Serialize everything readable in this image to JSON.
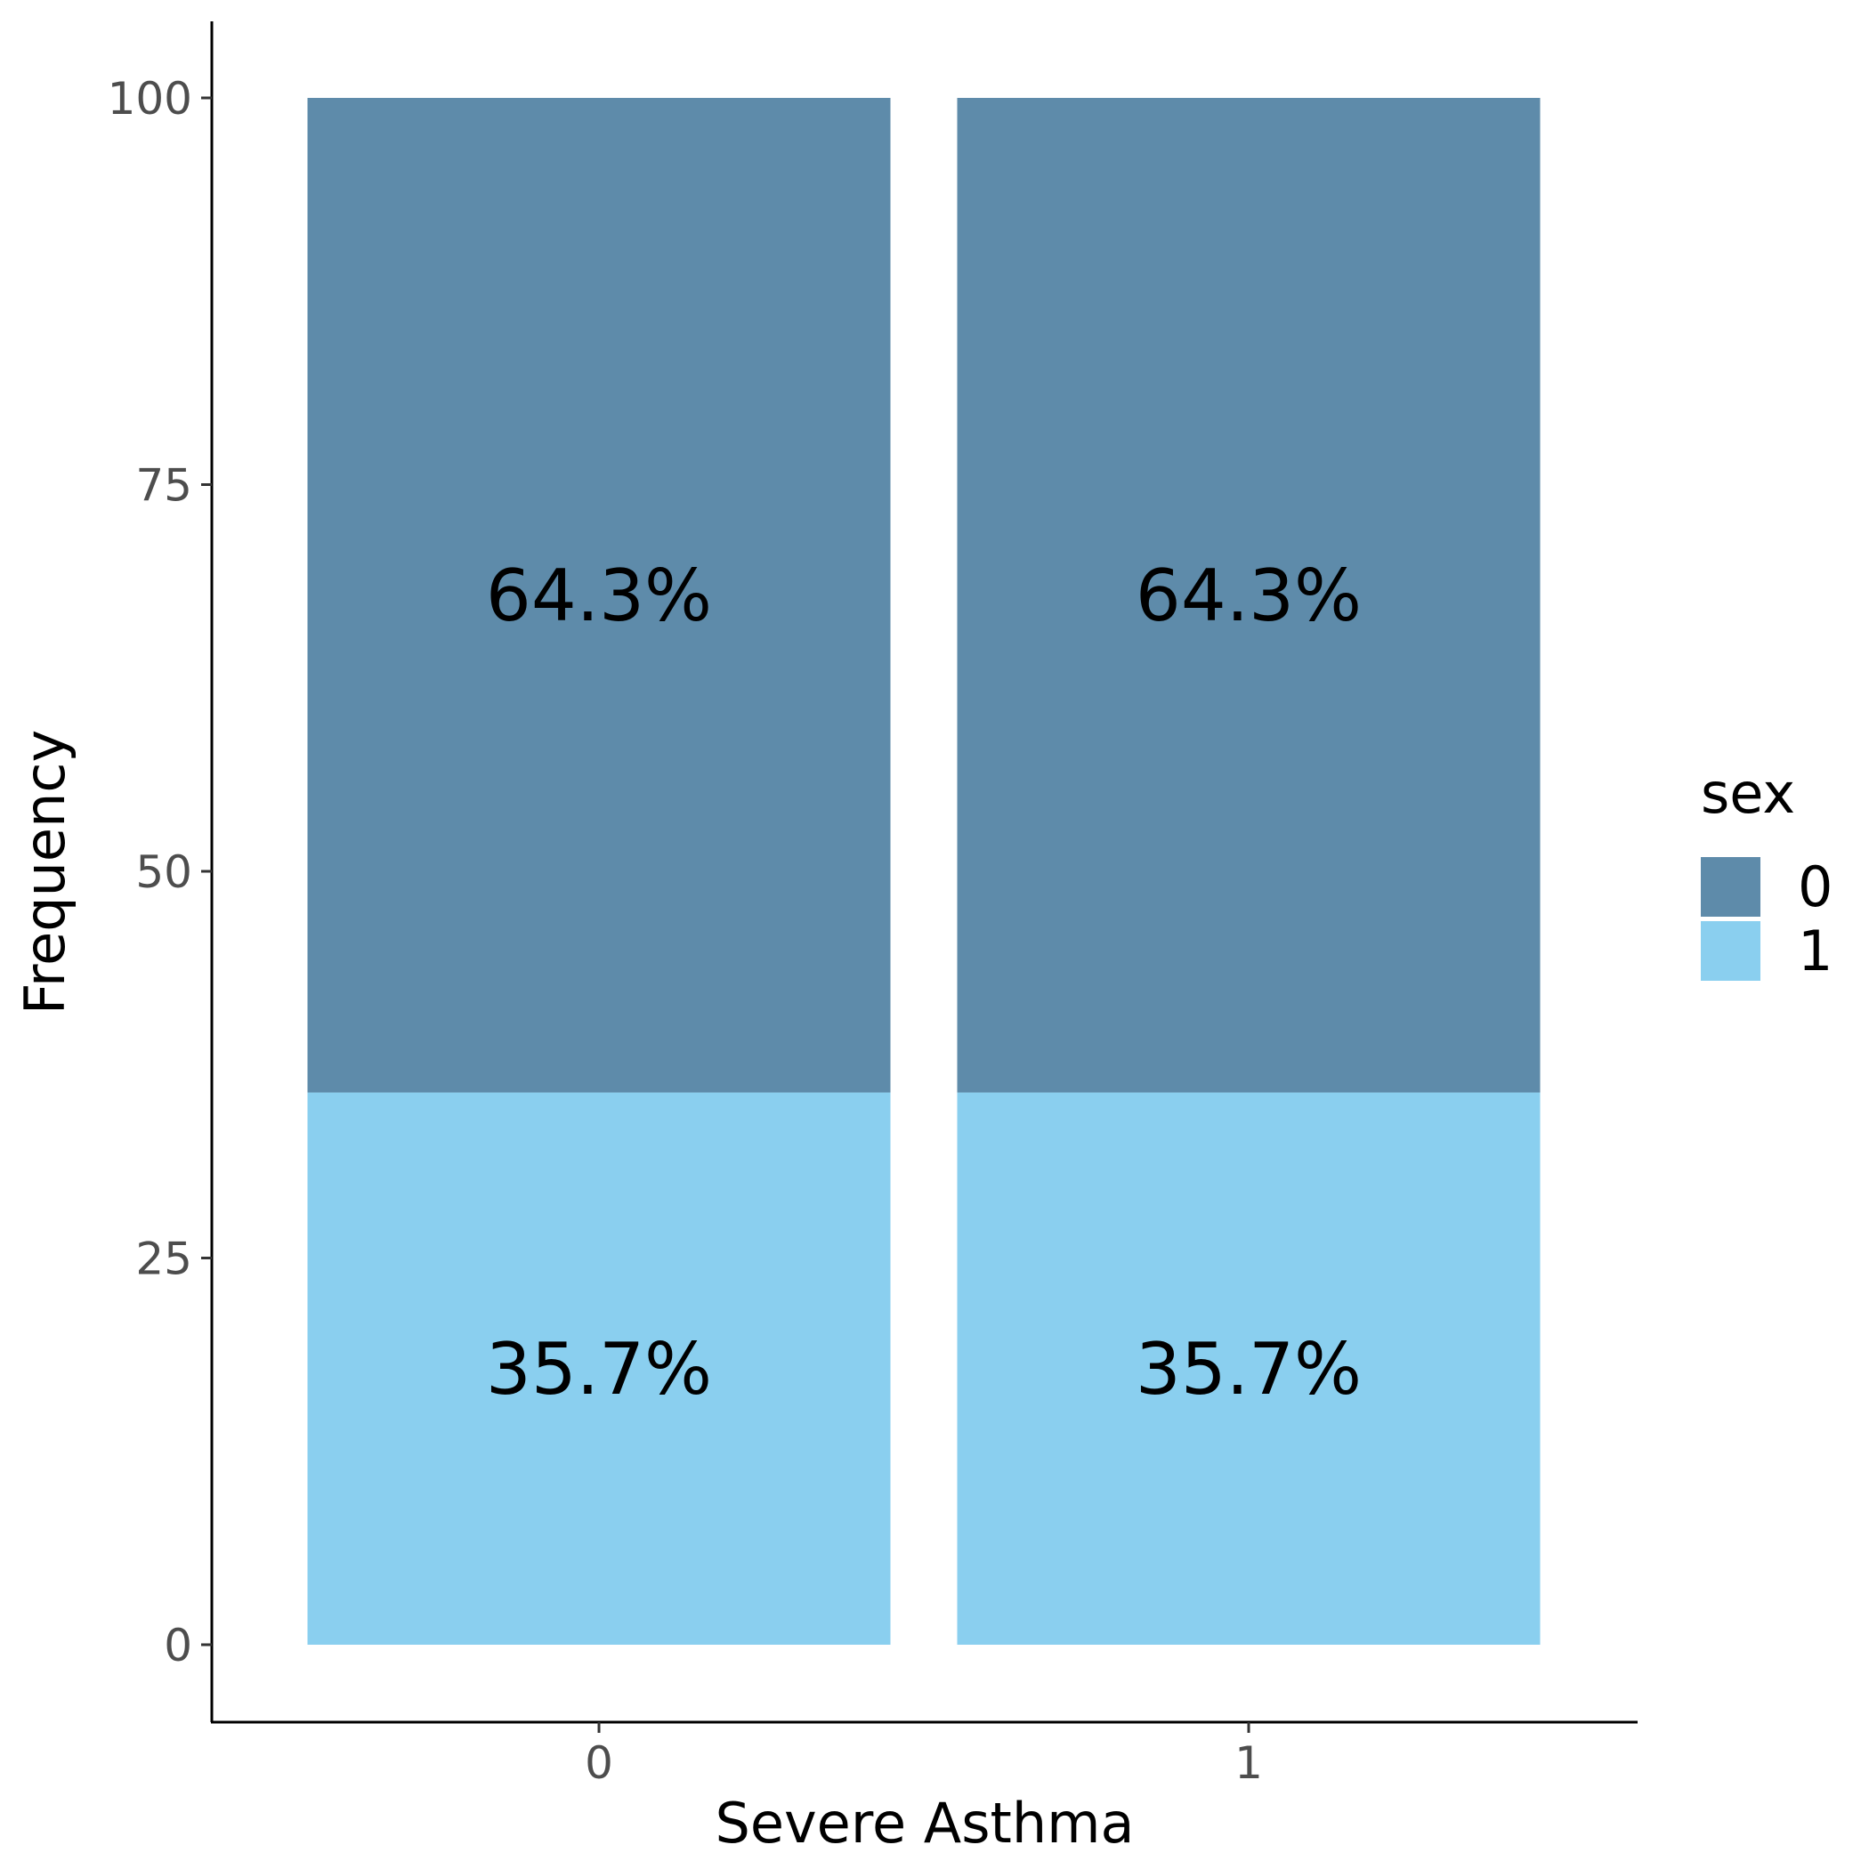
{
  "chart_data": {
    "type": "bar",
    "stacked": true,
    "categories": [
      "0",
      "1"
    ],
    "series": [
      {
        "name": "0",
        "values": [
          64.3,
          64.3
        ],
        "labels": [
          "64.3%",
          "64.3%"
        ],
        "color": "#5E8BAA"
      },
      {
        "name": "1",
        "values": [
          35.7,
          35.7
        ],
        "labels": [
          "35.7%",
          "35.7%"
        ],
        "color": "#8ACFEF"
      }
    ],
    "xlabel": "Severe Asthma",
    "ylabel": "Frequency",
    "ylim": [
      -5,
      105
    ],
    "yticks": [
      0,
      25,
      50,
      75,
      100
    ],
    "grid": false,
    "legend": {
      "title": "sex",
      "position": "right"
    }
  }
}
